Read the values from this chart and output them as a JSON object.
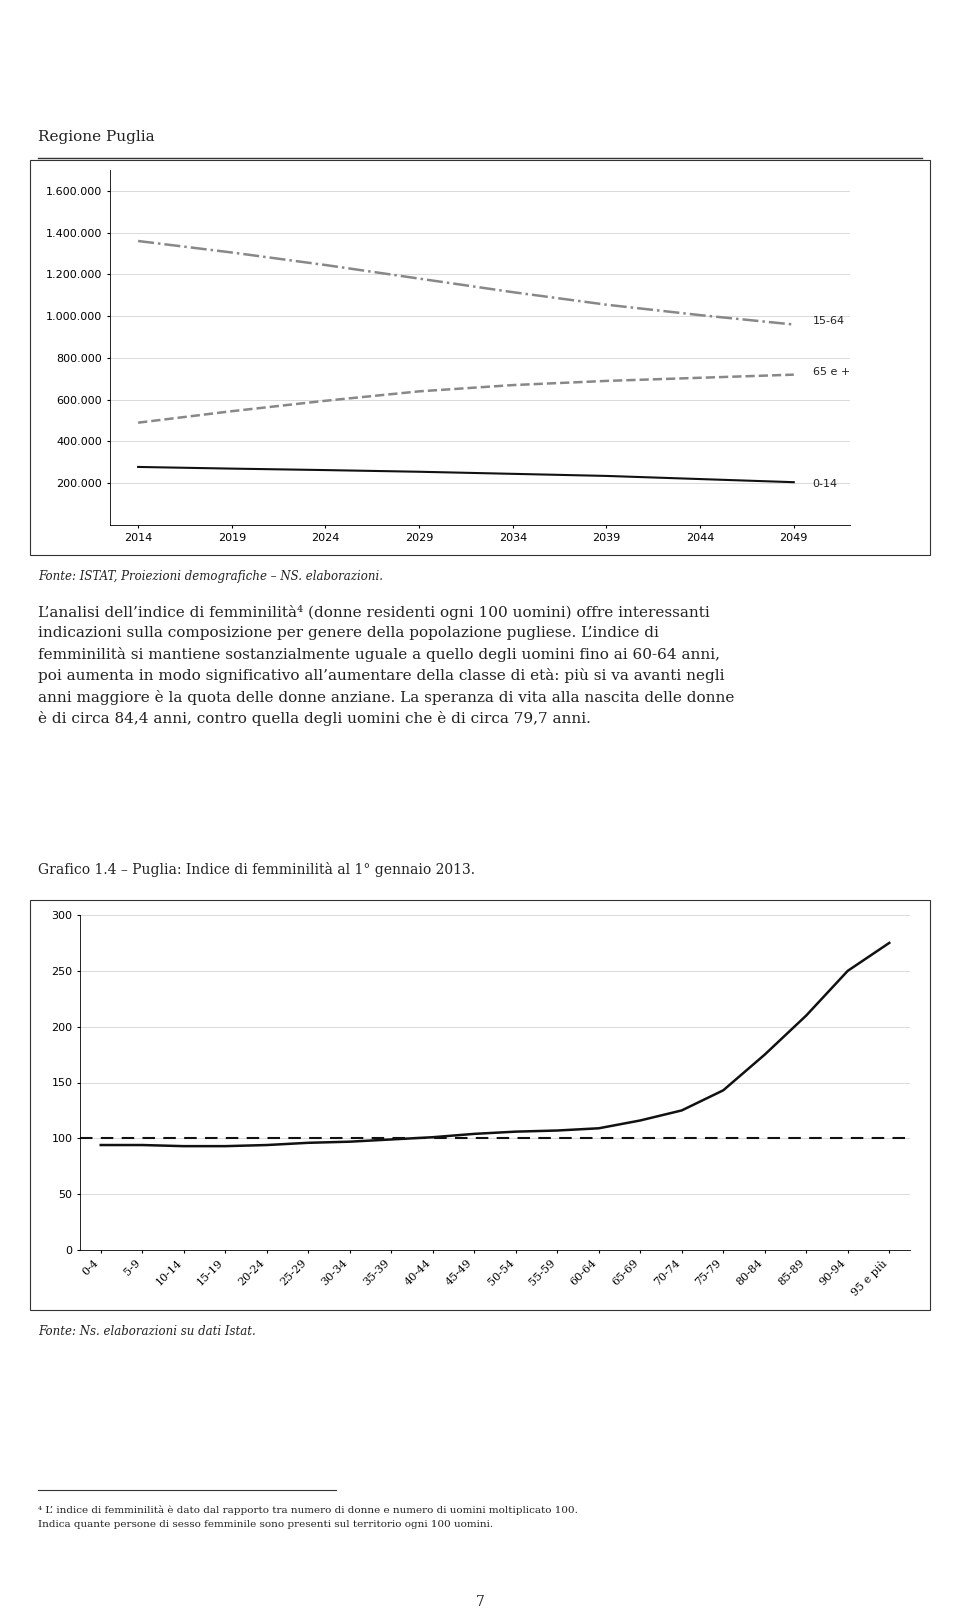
{
  "page_bg": "#ffffff",
  "chart1": {
    "years": [
      2014,
      2019,
      2024,
      2029,
      2034,
      2039,
      2044,
      2049
    ],
    "series": {
      "15-64": [
        1360000,
        1305000,
        1245000,
        1180000,
        1115000,
        1055000,
        1005000,
        960000
      ],
      "65 e +": [
        490000,
        545000,
        595000,
        640000,
        670000,
        690000,
        705000,
        720000
      ],
      "0-14": [
        278000,
        270000,
        263000,
        255000,
        245000,
        235000,
        220000,
        205000
      ]
    },
    "line_styles": {
      "15-64": {
        "color": "#888888",
        "linestyle": "dashdot",
        "linewidth": 1.8
      },
      "65 e +": {
        "color": "#888888",
        "linestyle": "dashed",
        "linewidth": 1.8
      },
      "0-14": {
        "color": "#111111",
        "linestyle": "solid",
        "linewidth": 1.5
      }
    },
    "ylim": [
      0,
      1700000
    ],
    "yticks": [
      200000,
      400000,
      600000,
      800000,
      1000000,
      1200000,
      1400000,
      1600000
    ],
    "ylabel_zero": "-",
    "source_text": "Fonte: ISTAT, Proiezioni demografiche – NS. elaborazioni."
  },
  "text_block": "L’analisi dell’indice di femminilità⁴ (donne residenti ogni 100 uomini) offre interessanti indicazioni sulla composizione per genere della popolazione pugliese. L’indice di femminilità si mantiene sostanzialmente uguale a quello degli uomini fino ai 60-64 anni, poi aumenta in modo significativo all’aumentare della classe di età: più si va avanti negli anni maggiore è la quota delle donne anziane. La speranza di vita alla nascita delle donne è di circa 84,4 anni, contro quella degli uomini che è di circa 79,7 anni.",
  "chart2": {
    "title": "Grafico 1.4 – Puglia: Indice di femminilità al 1° gennaio 2013.",
    "categories": [
      "0-4",
      "5-9",
      "10-14",
      "15-19",
      "20-24",
      "25-29",
      "30-34",
      "35-39",
      "40-44",
      "45-49",
      "50-54",
      "55-59",
      "60-64",
      "65-69",
      "70-74",
      "75-79",
      "80-84",
      "85-89",
      "90-94",
      "95 e più"
    ],
    "values_solid": [
      94,
      94,
      93,
      93,
      94,
      96,
      97,
      99,
      101,
      104,
      106,
      107,
      109,
      116,
      125,
      143,
      175,
      210,
      250,
      275
    ],
    "value_dashed": 100,
    "ylim": [
      0,
      300
    ],
    "yticks": [
      0,
      50,
      100,
      150,
      200,
      250,
      300
    ],
    "source_text": "Fonte: Ns. elaborazioni su dati Istat."
  },
  "footer_line": "____________________",
  "footer_text_line1": "⁴ L’ indice di femminilità è dato dal rapporto tra numero di donne e numero di uomini moltiplicato 100.",
  "footer_text_line2": "Indica quante persone di sesso femminile sono presenti sul territorio ogni 100 uomini.",
  "page_number": "7",
  "header_left_text": "Regione Puglia",
  "border_color": "#333333"
}
